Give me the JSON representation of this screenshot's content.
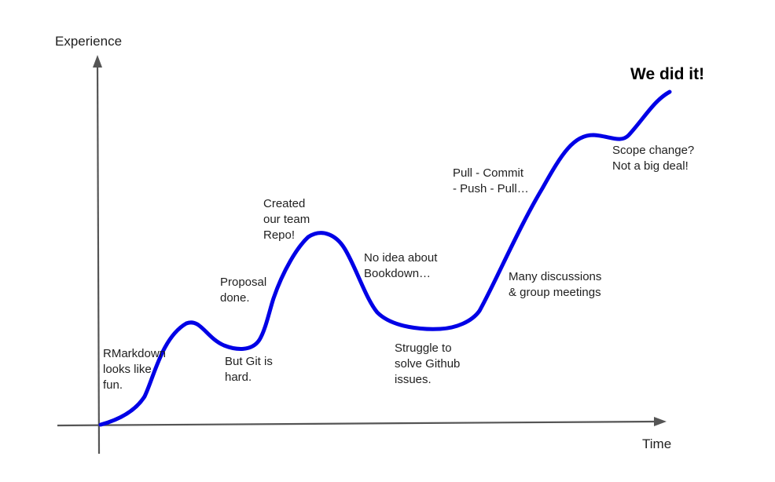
{
  "axes": {
    "y_label": "Experience",
    "x_label": "Time"
  },
  "title": "We did it!",
  "annotations": {
    "rmarkdown": "RMarkdown\nlooks like\nfun.",
    "git_hard": "But Git is\nhard.",
    "proposal": "Proposal\ndone.",
    "repo": "Created\nour team\nRepo!",
    "bookdown": "No idea about\nBookdown…",
    "github": "Struggle to\nsolve Github\nissues.",
    "discussions": "Many discussions\n& group meetings",
    "pull_commit": "Pull - Commit\n- Push - Pull…",
    "scope": "Scope change?\nNot a big deal!"
  },
  "colors": {
    "curve": "#0000e6",
    "axis": "#555555"
  }
}
